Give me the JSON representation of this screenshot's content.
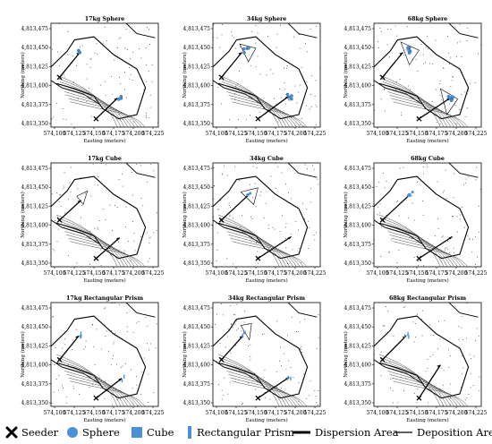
{
  "panels": [
    {
      "title": "17kg Sphere",
      "marker": "sphere"
    },
    {
      "title": "34kg Sphere",
      "marker": "sphere"
    },
    {
      "title": "68kg Sphere",
      "marker": "sphere"
    },
    {
      "title": "17kg Cube",
      "marker": "cube"
    },
    {
      "title": "34kg Cube",
      "marker": "cube"
    },
    {
      "title": "68kg Cube",
      "marker": "cube"
    },
    {
      "title": "17kg Rectangular Prism",
      "marker": "prism"
    },
    {
      "title": "34kg Rectangular Prism",
      "marker": "prism"
    },
    {
      "title": "68kg Rectangular Prism",
      "marker": "prism"
    }
  ],
  "axes": {
    "xlabel": "Easting (meters)",
    "ylabel": "Northing (meters)",
    "xticks": [
      "574,100",
      "574,125",
      "574,150",
      "574,175",
      "574,200",
      "574,225"
    ],
    "yticks": [
      "4,813,475",
      "4,813,450",
      "4,813,425",
      "4,813,400",
      "4,813,375",
      "4,813,350"
    ]
  },
  "legend": [
    {
      "key": "seeder",
      "label": "Seeder",
      "icon": "x-mark-icon"
    },
    {
      "key": "sphere",
      "label": "Sphere",
      "icon": "circle-icon"
    },
    {
      "key": "cube",
      "label": "Cube",
      "icon": "square-icon"
    },
    {
      "key": "prism",
      "label": "Rectangular Prism",
      "icon": "bar-icon"
    },
    {
      "key": "dispersion",
      "label": "Dispersion Area",
      "icon": "thick-line-icon"
    },
    {
      "key": "deposition",
      "label": "Deposition Area",
      "icon": "thin-line-icon"
    }
  ],
  "colors": {
    "marker_fill": "#4a90d9",
    "marker_stroke": "#1f4f86",
    "line": "#000000",
    "contour": "#333333"
  }
}
